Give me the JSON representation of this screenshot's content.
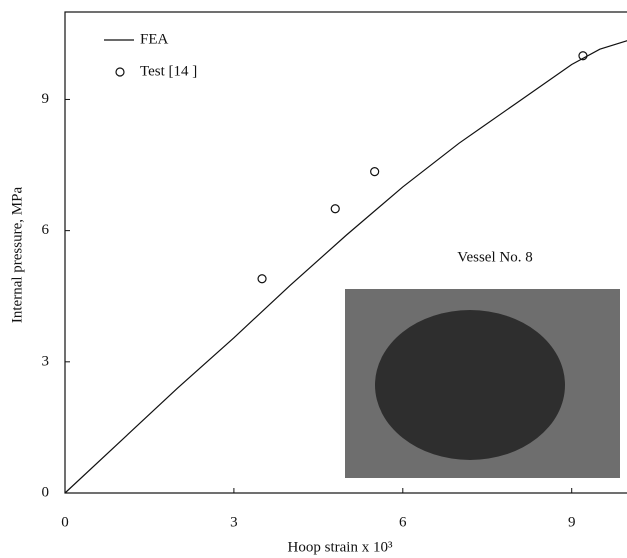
{
  "chart_data": {
    "type": "line",
    "xlabel": "Hoop strain x 10³",
    "ylabel": "Internal pressure, MPa",
    "annotation": "Vessel No. 8",
    "xlim": [
      0,
      10
    ],
    "ylim": [
      0,
      11
    ],
    "xticks": [
      0,
      3,
      6,
      9
    ],
    "yticks": [
      0,
      3,
      6,
      9
    ],
    "grid": false,
    "legend": "upper left",
    "series": [
      {
        "name": "FEA",
        "type": "line",
        "color": "#111111",
        "x": [
          0,
          1,
          2,
          3,
          4,
          5,
          6,
          7,
          8,
          9,
          9.5,
          10
        ],
        "values": [
          0,
          1.2,
          2.4,
          3.55,
          4.75,
          5.9,
          7.0,
          8.0,
          8.9,
          9.8,
          10.15,
          10.35
        ]
      },
      {
        "name": "Test [14 ]",
        "type": "scatter",
        "color": "#111111",
        "x": [
          3.5,
          4.8,
          5.5,
          9.2
        ],
        "values": [
          4.9,
          6.5,
          7.35,
          10.0
        ]
      }
    ]
  }
}
